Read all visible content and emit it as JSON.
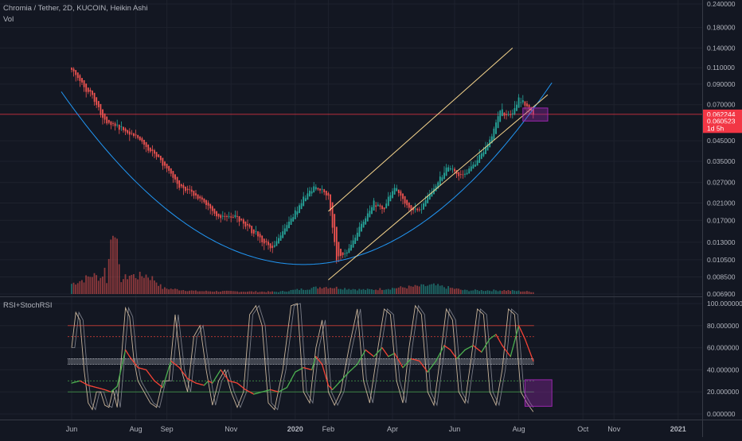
{
  "header": {
    "symbol_line": "Chromia / Tether, 2D, KUCOIN, Heikin Ashi",
    "vol_label": "Vol",
    "indicator_label": "RSI+StochRSI"
  },
  "colors": {
    "background": "#131722",
    "up": "#26a69a",
    "down": "#ef5350",
    "price_line": "#f23645",
    "curve": "#2196f3",
    "channel": "#f5d48c",
    "highlight": "#9c27b0",
    "rsi_up": "#4caf50",
    "rsi_down": "#f44336",
    "stoch": "#c8b49a"
  },
  "chart_data": [
    {
      "type": "candlestick",
      "title": "Chromia / Tether, 2D, KUCOIN, Heikin Ashi",
      "y_scale": "log",
      "ylim": [
        0.0069,
        0.24
      ],
      "y_ticks": [
        {
          "value": 0.24,
          "label": "0.240000"
        },
        {
          "value": 0.18,
          "label": "0.180000"
        },
        {
          "value": 0.14,
          "label": "0.140000"
        },
        {
          "value": 0.11,
          "label": "0.110000"
        },
        {
          "value": 0.09,
          "label": "0.090000"
        },
        {
          "value": 0.07,
          "label": "0.070000"
        },
        {
          "value": 0.045,
          "label": "0.045000"
        },
        {
          "value": 0.035,
          "label": "0.035000"
        },
        {
          "value": 0.027,
          "label": "0.027000"
        },
        {
          "value": 0.021,
          "label": "0.021000"
        },
        {
          "value": 0.017,
          "label": "0.017000"
        },
        {
          "value": 0.013,
          "label": "0.013000"
        },
        {
          "value": 0.0105,
          "label": "0.010500"
        },
        {
          "value": 0.0085,
          "label": "0.008500"
        },
        {
          "value": 0.0069,
          "label": "0.006900"
        }
      ],
      "price_tags": [
        {
          "label": "0.062244",
          "value": 0.0622
        },
        {
          "label": "0.060523",
          "value": 0.0572
        },
        {
          "label": "1d 5h",
          "value": 0.0525
        }
      ],
      "horizontal_line": 0.0622,
      "x_ticks": [
        {
          "label": "Jun",
          "bold": false
        },
        {
          "label": "Aug",
          "bold": false
        },
        {
          "label": "Sep",
          "bold": false
        },
        {
          "label": "Nov",
          "bold": false
        },
        {
          "label": "2020",
          "bold": true
        },
        {
          "label": "Feb",
          "bold": false
        },
        {
          "label": "Apr",
          "bold": false
        },
        {
          "label": "Jun",
          "bold": false
        },
        {
          "label": "Aug",
          "bold": false
        },
        {
          "label": "Oct",
          "bold": false
        },
        {
          "label": "Nov",
          "bold": false
        },
        {
          "label": "2021",
          "bold": true
        }
      ],
      "anchors": [
        [
          0,
          0.11
        ],
        [
          4,
          0.092
        ],
        [
          9,
          0.08
        ],
        [
          16,
          0.058
        ],
        [
          24,
          0.052
        ],
        [
          32,
          0.046
        ],
        [
          42,
          0.036
        ],
        [
          52,
          0.026
        ],
        [
          62,
          0.022
        ],
        [
          70,
          0.018
        ],
        [
          80,
          0.0175
        ],
        [
          90,
          0.014
        ],
        [
          97,
          0.0118
        ],
        [
          104,
          0.016
        ],
        [
          112,
          0.022
        ],
        [
          118,
          0.026
        ],
        [
          124,
          0.023
        ],
        [
          128,
          0.0105
        ],
        [
          134,
          0.012
        ],
        [
          140,
          0.016
        ],
        [
          146,
          0.021
        ],
        [
          150,
          0.019
        ],
        [
          156,
          0.026
        ],
        [
          162,
          0.02
        ],
        [
          168,
          0.019
        ],
        [
          176,
          0.026
        ],
        [
          182,
          0.033
        ],
        [
          188,
          0.029
        ],
        [
          195,
          0.034
        ],
        [
          202,
          0.045
        ],
        [
          207,
          0.065
        ],
        [
          212,
          0.06
        ],
        [
          216,
          0.075
        ],
        [
          220,
          0.068
        ],
        [
          223,
          0.062
        ]
      ],
      "volumes": [
        [
          0,
          0.14
        ],
        [
          6,
          0.2
        ],
        [
          10,
          0.26
        ],
        [
          14,
          0.22
        ],
        [
          16,
          0.33
        ],
        [
          17,
          0.18
        ],
        [
          19,
          0.75
        ],
        [
          20,
          0.95
        ],
        [
          21,
          1.0
        ],
        [
          22,
          0.62
        ],
        [
          23,
          0.33
        ],
        [
          24,
          0.2
        ],
        [
          26,
          0.22
        ],
        [
          28,
          0.26
        ],
        [
          32,
          0.24
        ],
        [
          36,
          0.26
        ],
        [
          40,
          0.2
        ],
        [
          44,
          0.08
        ],
        [
          60,
          0.04
        ],
        [
          100,
          0.03
        ],
        [
          122,
          0.1
        ],
        [
          140,
          0.06
        ],
        [
          145,
          0.06
        ],
        [
          175,
          0.12
        ],
        [
          190,
          0.05
        ],
        [
          210,
          0.05
        ],
        [
          223,
          0.03
        ]
      ],
      "bowl_curve": {
        "t0": -5,
        "t1": 232,
        "low_t": 112,
        "low_price": 0.0099,
        "price_at_t0": 0.082
      },
      "channel": {
        "upper": [
          [
            124,
            0.019
          ],
          [
            213,
            0.14
          ]
        ],
        "lower": [
          [
            124,
            0.0082
          ],
          [
            230,
            0.079
          ]
        ]
      },
      "highlight_box": {
        "t0": 218,
        "t1": 230,
        "p_high": 0.0672,
        "p_low": 0.0573
      }
    },
    {
      "type": "line",
      "title": "RSI+StochRSI",
      "ylim": [
        -5,
        105
      ],
      "y_ticks": [
        {
          "value": 100,
          "label": "100.000000"
        },
        {
          "value": 80,
          "label": "80.000000"
        },
        {
          "value": 60,
          "label": "60.000000"
        },
        {
          "value": 40,
          "label": "40.000000"
        },
        {
          "value": 20,
          "label": "20.000000"
        },
        {
          "value": 0,
          "label": "0.000000"
        }
      ],
      "levels": [
        80,
        70,
        50,
        45,
        30,
        20
      ],
      "rsi_anchors": [
        [
          0,
          28
        ],
        [
          4,
          30
        ],
        [
          8,
          26
        ],
        [
          12,
          24
        ],
        [
          16,
          22
        ],
        [
          19,
          20
        ],
        [
          22,
          25
        ],
        [
          26,
          58
        ],
        [
          28,
          52
        ],
        [
          32,
          42
        ],
        [
          36,
          40
        ],
        [
          40,
          30
        ],
        [
          44,
          24
        ],
        [
          48,
          48
        ],
        [
          52,
          42
        ],
        [
          56,
          32
        ],
        [
          60,
          28
        ],
        [
          64,
          26
        ],
        [
          66,
          30
        ],
        [
          68,
          28
        ],
        [
          72,
          40
        ],
        [
          76,
          30
        ],
        [
          80,
          28
        ],
        [
          84,
          22
        ],
        [
          88,
          18
        ],
        [
          92,
          20
        ],
        [
          96,
          22
        ],
        [
          100,
          20
        ],
        [
          104,
          24
        ],
        [
          108,
          38
        ],
        [
          112,
          42
        ],
        [
          116,
          40
        ],
        [
          118,
          52
        ],
        [
          121,
          45
        ],
        [
          124,
          26
        ],
        [
          126,
          22
        ],
        [
          130,
          30
        ],
        [
          134,
          38
        ],
        [
          138,
          45
        ],
        [
          142,
          58
        ],
        [
          146,
          52
        ],
        [
          150,
          60
        ],
        [
          153,
          52
        ],
        [
          156,
          55
        ],
        [
          160,
          42
        ],
        [
          164,
          50
        ],
        [
          168,
          48
        ],
        [
          172,
          38
        ],
        [
          176,
          48
        ],
        [
          180,
          62
        ],
        [
          183,
          58
        ],
        [
          186,
          50
        ],
        [
          190,
          58
        ],
        [
          194,
          62
        ],
        [
          198,
          56
        ],
        [
          202,
          68
        ],
        [
          205,
          72
        ],
        [
          208,
          62
        ],
        [
          212,
          52
        ],
        [
          216,
          80
        ],
        [
          219,
          68
        ],
        [
          223,
          48
        ]
      ],
      "stoch_anchors": [
        [
          0,
          60
        ],
        [
          2,
          92
        ],
        [
          4,
          85
        ],
        [
          6,
          40
        ],
        [
          8,
          10
        ],
        [
          10,
          4
        ],
        [
          12,
          20
        ],
        [
          14,
          20
        ],
        [
          16,
          8
        ],
        [
          18,
          6
        ],
        [
          20,
          22
        ],
        [
          22,
          6
        ],
        [
          24,
          50
        ],
        [
          26,
          96
        ],
        [
          28,
          88
        ],
        [
          30,
          50
        ],
        [
          32,
          30
        ],
        [
          35,
          20
        ],
        [
          38,
          10
        ],
        [
          41,
          6
        ],
        [
          44,
          30
        ],
        [
          47,
          30
        ],
        [
          50,
          90
        ],
        [
          53,
          40
        ],
        [
          56,
          20
        ],
        [
          59,
          70
        ],
        [
          62,
          80
        ],
        [
          65,
          40
        ],
        [
          68,
          8
        ],
        [
          71,
          30
        ],
        [
          74,
          40
        ],
        [
          77,
          20
        ],
        [
          80,
          6
        ],
        [
          83,
          20
        ],
        [
          86,
          90
        ],
        [
          89,
          98
        ],
        [
          92,
          80
        ],
        [
          95,
          10
        ],
        [
          98,
          4
        ],
        [
          102,
          40
        ],
        [
          106,
          98
        ],
        [
          109,
          100
        ],
        [
          112,
          20
        ],
        [
          115,
          10
        ],
        [
          118,
          60
        ],
        [
          121,
          85
        ],
        [
          124,
          20
        ],
        [
          127,
          8
        ],
        [
          130,
          20
        ],
        [
          134,
          60
        ],
        [
          138,
          95
        ],
        [
          141,
          30
        ],
        [
          144,
          10
        ],
        [
          148,
          60
        ],
        [
          151,
          95
        ],
        [
          154,
          90
        ],
        [
          157,
          30
        ],
        [
          160,
          10
        ],
        [
          163,
          60
        ],
        [
          166,
          98
        ],
        [
          169,
          90
        ],
        [
          172,
          20
        ],
        [
          175,
          8
        ],
        [
          178,
          50
        ],
        [
          181,
          95
        ],
        [
          184,
          85
        ],
        [
          187,
          20
        ],
        [
          190,
          10
        ],
        [
          193,
          50
        ],
        [
          196,
          95
        ],
        [
          199,
          90
        ],
        [
          202,
          20
        ],
        [
          205,
          8
        ],
        [
          208,
          40
        ],
        [
          211,
          95
        ],
        [
          214,
          90
        ],
        [
          217,
          20
        ],
        [
          220,
          10
        ],
        [
          223,
          2
        ]
      ],
      "highlight_box": {
        "t0": 219,
        "t1": 232,
        "v_high": 31,
        "v_low": 7
      }
    }
  ]
}
